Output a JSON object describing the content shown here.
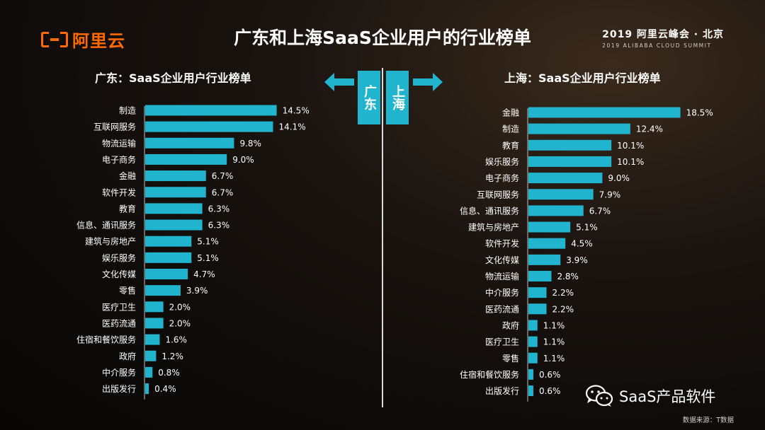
{
  "logo": {
    "text": "阿里云"
  },
  "title": "广东和上海SaaS企业用户的行业榜单",
  "summit": {
    "line1": "2019 阿里云峰会 · 北京",
    "line2": "2019 ALIBABA CLOUD SUMMIT"
  },
  "center": {
    "left_city": "广东",
    "right_city": "上海"
  },
  "watermark": {
    "text": "SaaS产品软件",
    "icon": "wechat-icon"
  },
  "source": "数据来源：T数据",
  "colors": {
    "bar": "#21b4cf",
    "accent": "#ff6a00"
  },
  "chart_data": [
    {
      "type": "bar",
      "orientation": "horizontal",
      "title": "广东：SaaS企业用户行业榜单",
      "categories": [
        "制造",
        "互联网服务",
        "物流运输",
        "电子商务",
        "金融",
        "软件开发",
        "教育",
        "信息、通讯服务",
        "建筑与房地产",
        "娱乐服务",
        "文化传媒",
        "零售",
        "医疗卫生",
        "医药流通",
        "住宿和餐饮服务",
        "政府",
        "中介服务",
        "出版发行"
      ],
      "values": [
        14.5,
        14.1,
        9.8,
        9.0,
        6.7,
        6.7,
        6.3,
        6.3,
        5.1,
        5.1,
        4.7,
        3.9,
        2.0,
        2.0,
        1.6,
        1.2,
        0.8,
        0.4
      ],
      "labels": [
        "14.5%",
        "14.1%",
        "9.8%",
        "9.0%",
        "6.7%",
        "6.7%",
        "6.3%",
        "6.3%",
        "5.1%",
        "5.1%",
        "4.7%",
        "3.9%",
        "2.0%",
        "2.0%",
        "1.6%",
        "1.2%",
        "0.8%",
        "0.4%"
      ],
      "unit": "%"
    },
    {
      "type": "bar",
      "orientation": "horizontal",
      "title": "上海：SaaS企业用户行业榜单",
      "categories": [
        "金融",
        "制造",
        "教育",
        "娱乐服务",
        "电子商务",
        "互联网服务",
        "信息、通讯服务",
        "建筑与房地产",
        "软件开发",
        "文化传媒",
        "物流运输",
        "中介服务",
        "医药流通",
        "政府",
        "医疗卫生",
        "零售",
        "住宿和餐饮服务",
        "出版发行"
      ],
      "values": [
        18.5,
        12.4,
        10.1,
        10.1,
        9.0,
        7.9,
        6.7,
        5.1,
        4.5,
        3.9,
        2.8,
        2.2,
        2.2,
        1.1,
        1.1,
        1.1,
        0.6,
        0.6
      ],
      "labels": [
        "18.5%",
        "12.4%",
        "10.1%",
        "10.1%",
        "9.0%",
        "7.9%",
        "6.7%",
        "5.1%",
        "4.5%",
        "3.9%",
        "2.8%",
        "2.2%",
        "2.2%",
        "1.1%",
        "1.1%",
        "1.1%",
        "0.6%",
        "0.6%"
      ],
      "unit": "%"
    }
  ]
}
